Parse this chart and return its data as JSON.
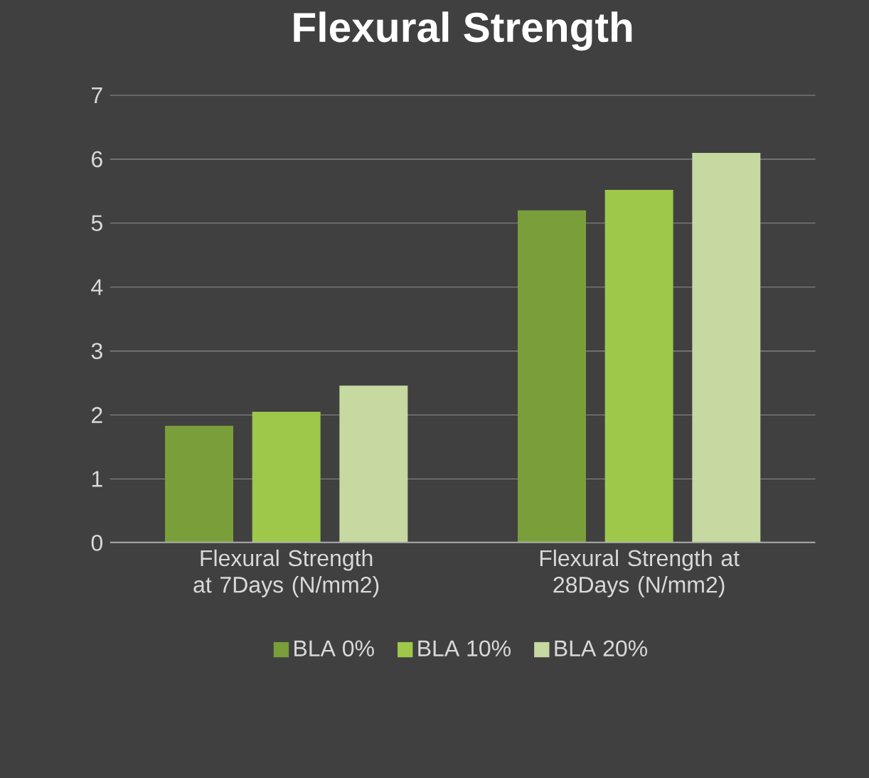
{
  "chart_data": {
    "type": "bar",
    "title": "Flexural Strength",
    "categories": [
      "Flexural Strength at 7Days (N/mm2)",
      "Flexural Strength at 28Days (N/mm2)"
    ],
    "series": [
      {
        "name": "BLA 0%",
        "color": "#7a9e3a",
        "values": [
          1.83,
          5.2
        ]
      },
      {
        "name": "BLA 10%",
        "color": "#9dc84a",
        "values": [
          2.05,
          5.52
        ]
      },
      {
        "name": "BLA 20%",
        "color": "#c5d9a0",
        "values": [
          2.46,
          6.1
        ]
      }
    ],
    "ylim": [
      0,
      7
    ],
    "yticks": [
      0,
      1,
      2,
      3,
      4,
      5,
      6,
      7
    ],
    "grid": "y",
    "legend": "bottom"
  }
}
